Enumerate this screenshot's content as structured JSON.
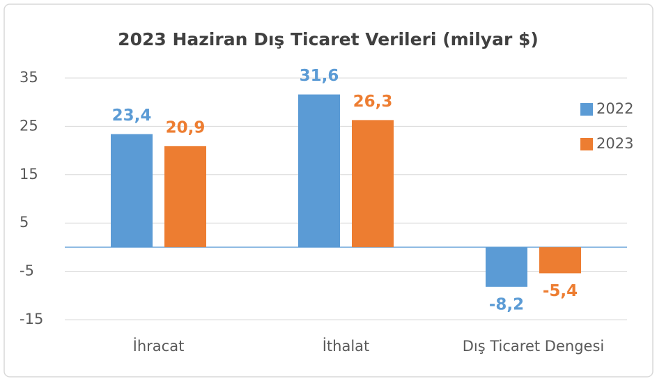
{
  "chart_data": {
    "type": "bar",
    "title": "2023 Haziran Dış Ticaret Verileri (milyar $)",
    "categories": [
      "İhracat",
      "İthalat",
      "Dış Ticaret Dengesi"
    ],
    "series": [
      {
        "name": "2022",
        "color": "#5b9bd5",
        "values": [
          23.4,
          31.6,
          -8.2
        ],
        "value_labels": [
          "23,4",
          "31,6",
          "-8,2"
        ]
      },
      {
        "name": "2023",
        "color": "#ed7d31",
        "values": [
          20.9,
          26.3,
          -5.4
        ],
        "value_labels": [
          "20,9",
          "26,3",
          "-5,4"
        ]
      }
    ],
    "ylim": [
      -15,
      35
    ],
    "yticks": [
      35,
      25,
      15,
      5,
      -5,
      -15
    ],
    "grid": true,
    "legend": "right"
  }
}
